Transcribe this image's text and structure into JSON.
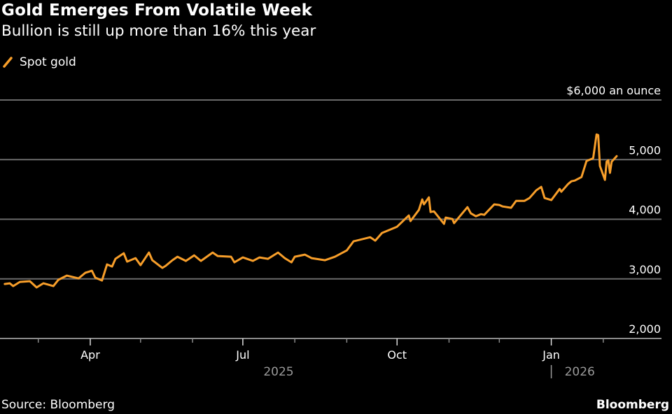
{
  "header": {
    "title": "Gold Emerges From Volatile Week",
    "subtitle": "Bullion is still up more than 16% this year"
  },
  "footer": {
    "source": "Source: Bloomberg",
    "brand": "Bloomberg"
  },
  "chart_data": {
    "type": "line",
    "title": "Gold Emerges From Volatile Week",
    "subtitle": "Bullion is still up more than 16% this year",
    "ylabel": "$6,000 an ounce",
    "ylim": [
      2000,
      6000
    ],
    "yticks": [
      {
        "value": 6000,
        "label": "$6,000 an ounce"
      },
      {
        "value": 5000,
        "label": "5,000"
      },
      {
        "value": 4000,
        "label": "4,000"
      },
      {
        "value": 3000,
        "label": "3,000"
      },
      {
        "value": 2000,
        "label": "2,000"
      }
    ],
    "xticks": [
      {
        "date": "2025-03-01",
        "label": ""
      },
      {
        "date": "2025-04-01",
        "label": "Apr"
      },
      {
        "date": "2025-05-01",
        "label": ""
      },
      {
        "date": "2025-06-01",
        "label": ""
      },
      {
        "date": "2025-07-01",
        "label": "Jul"
      },
      {
        "date": "2025-08-01",
        "label": ""
      },
      {
        "date": "2025-09-01",
        "label": ""
      },
      {
        "date": "2025-10-01",
        "label": "Oct"
      },
      {
        "date": "2025-11-01",
        "label": ""
      },
      {
        "date": "2025-12-01",
        "label": ""
      },
      {
        "date": "2026-01-01",
        "label": "Jan"
      },
      {
        "date": "2026-02-01",
        "label": ""
      }
    ],
    "year_labels": [
      "2025",
      "2026"
    ],
    "grid": true,
    "legend": "top-left",
    "colors": {
      "series": "#f79e2a",
      "grid": "#6a6a6a",
      "background": "#000000"
    },
    "series": [
      {
        "name": "Spot gold",
        "points": [
          [
            "2025-02-09",
            2914
          ],
          [
            "2025-02-12",
            2926
          ],
          [
            "2025-02-14",
            2879
          ],
          [
            "2025-02-18",
            2949
          ],
          [
            "2025-02-24",
            2961
          ],
          [
            "2025-02-28",
            2856
          ],
          [
            "2025-03-04",
            2926
          ],
          [
            "2025-03-10",
            2879
          ],
          [
            "2025-03-13",
            2984
          ],
          [
            "2025-03-18",
            3055
          ],
          [
            "2025-03-25",
            3008
          ],
          [
            "2025-03-29",
            3102
          ],
          [
            "2025-04-02",
            3137
          ],
          [
            "2025-04-04",
            3020
          ],
          [
            "2025-04-08",
            2973
          ],
          [
            "2025-04-11",
            3242
          ],
          [
            "2025-04-14",
            3207
          ],
          [
            "2025-04-16",
            3336
          ],
          [
            "2025-04-21",
            3430
          ],
          [
            "2025-04-23",
            3289
          ],
          [
            "2025-04-28",
            3348
          ],
          [
            "2025-05-01",
            3231
          ],
          [
            "2025-05-06",
            3442
          ],
          [
            "2025-05-08",
            3313
          ],
          [
            "2025-05-14",
            3184
          ],
          [
            "2025-05-16",
            3219
          ],
          [
            "2025-05-20",
            3313
          ],
          [
            "2025-05-23",
            3371
          ],
          [
            "2025-05-28",
            3301
          ],
          [
            "2025-06-02",
            3395
          ],
          [
            "2025-06-06",
            3301
          ],
          [
            "2025-06-13",
            3442
          ],
          [
            "2025-06-16",
            3383
          ],
          [
            "2025-06-24",
            3371
          ],
          [
            "2025-06-26",
            3278
          ],
          [
            "2025-07-01",
            3360
          ],
          [
            "2025-07-07",
            3301
          ],
          [
            "2025-07-11",
            3360
          ],
          [
            "2025-07-16",
            3336
          ],
          [
            "2025-07-22",
            3442
          ],
          [
            "2025-07-26",
            3348
          ],
          [
            "2025-07-30",
            3278
          ],
          [
            "2025-08-01",
            3371
          ],
          [
            "2025-08-07",
            3406
          ],
          [
            "2025-08-11",
            3348
          ],
          [
            "2025-08-19",
            3313
          ],
          [
            "2025-08-25",
            3371
          ],
          [
            "2025-09-01",
            3477
          ],
          [
            "2025-09-05",
            3629
          ],
          [
            "2025-09-15",
            3699
          ],
          [
            "2025-09-18",
            3641
          ],
          [
            "2025-09-22",
            3770
          ],
          [
            "2025-10-01",
            3875
          ],
          [
            "2025-10-08",
            4063
          ],
          [
            "2025-10-09",
            3969
          ],
          [
            "2025-10-14",
            4156
          ],
          [
            "2025-10-16",
            4332
          ],
          [
            "2025-10-17",
            4250
          ],
          [
            "2025-10-20",
            4367
          ],
          [
            "2025-10-21",
            4121
          ],
          [
            "2025-10-23",
            4133
          ],
          [
            "2025-10-29",
            3922
          ],
          [
            "2025-10-30",
            4028
          ],
          [
            "2025-11-03",
            4004
          ],
          [
            "2025-11-04",
            3934
          ],
          [
            "2025-11-12",
            4203
          ],
          [
            "2025-11-14",
            4098
          ],
          [
            "2025-11-17",
            4051
          ],
          [
            "2025-11-20",
            4086
          ],
          [
            "2025-11-22",
            4074
          ],
          [
            "2025-11-28",
            4250
          ],
          [
            "2025-12-01",
            4239
          ],
          [
            "2025-12-03",
            4215
          ],
          [
            "2025-12-08",
            4192
          ],
          [
            "2025-12-11",
            4309
          ],
          [
            "2025-12-16",
            4309
          ],
          [
            "2025-12-19",
            4356
          ],
          [
            "2025-12-23",
            4485
          ],
          [
            "2025-12-26",
            4543
          ],
          [
            "2025-12-28",
            4356
          ],
          [
            "2026-01-01",
            4321
          ],
          [
            "2026-01-06",
            4508
          ],
          [
            "2026-01-07",
            4461
          ],
          [
            "2026-01-11",
            4590
          ],
          [
            "2026-01-13",
            4637
          ],
          [
            "2026-01-15",
            4649
          ],
          [
            "2026-01-19",
            4707
          ],
          [
            "2026-01-22",
            4977
          ],
          [
            "2026-01-26",
            5024
          ],
          [
            "2026-01-28",
            5422
          ],
          [
            "2026-01-29",
            5411
          ],
          [
            "2026-01-30",
            4895
          ],
          [
            "2026-02-02",
            4660
          ],
          [
            "2026-02-03",
            4965
          ],
          [
            "2026-02-04",
            4989
          ],
          [
            "2026-02-05",
            4778
          ],
          [
            "2026-02-06",
            4965
          ],
          [
            "2026-02-09",
            5059
          ]
        ]
      }
    ]
  }
}
